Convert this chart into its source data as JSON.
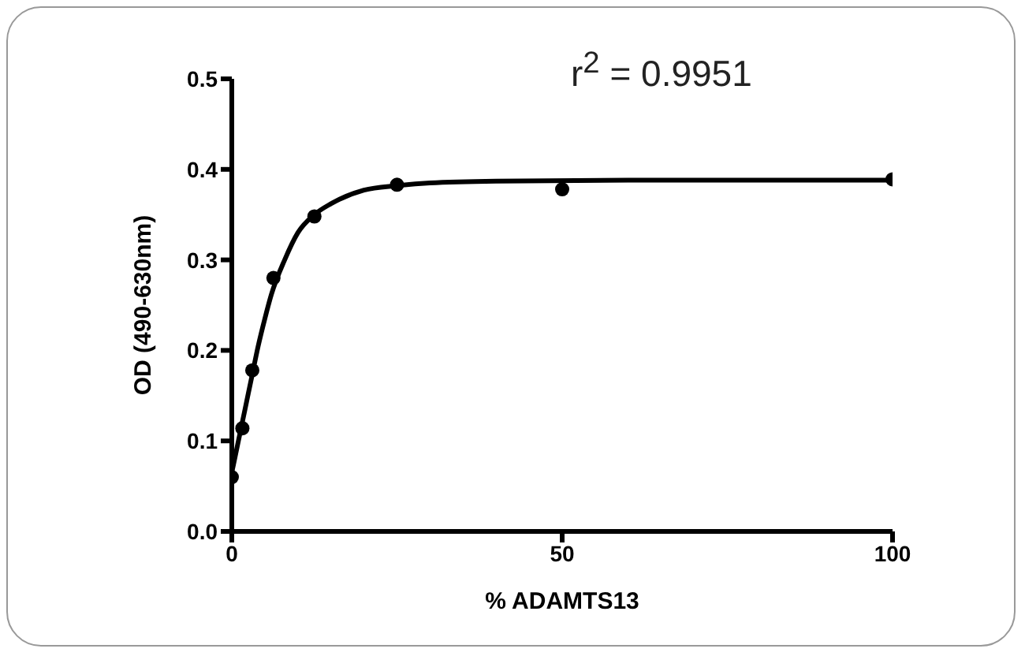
{
  "chart_data": {
    "type": "scatter",
    "xlabel": "% ADAMTS13",
    "ylabel": "OD  (490-630nm)",
    "annotations": [
      "r$^{2}$ = 0.9951"
    ],
    "series": [
      {
        "type": "scatter",
        "color": "#000000",
        "marker": "circle",
        "x": [
          0,
          1.6,
          3.1,
          6.3,
          12.5,
          25,
          50,
          100
        ],
        "values": [
          0.06,
          0.114,
          0.178,
          0.28,
          0.348,
          0.383,
          0.378,
          0.389
        ]
      },
      {
        "type": "line",
        "color": "#000000",
        "marker": "none",
        "line_style": "solid",
        "x": [
          0,
          1,
          2,
          3,
          4,
          5,
          6,
          8,
          10,
          12.5,
          15,
          20,
          25,
          30,
          40,
          60,
          100
        ],
        "values": [
          0.065,
          0.1,
          0.135,
          0.17,
          0.205,
          0.235,
          0.262,
          0.3,
          0.33,
          0.35,
          0.362,
          0.377,
          0.382,
          0.385,
          0.387,
          0.388,
          0.388
        ]
      }
    ],
    "xlim": [
      0,
      100
    ],
    "xticks": [
      0,
      50,
      100
    ],
    "ylim": [
      0,
      0.5
    ],
    "yticks": [
      {
        "value": 0,
        "label": "0.0"
      },
      {
        "value": 0.1,
        "label": "0.1"
      },
      {
        "value": 0.2,
        "label": "0.2"
      },
      {
        "value": 0.3,
        "label": "0.3"
      },
      {
        "value": 0.4,
        "label": "0.4"
      },
      {
        "value": 0.5,
        "label": "0.5"
      }
    ],
    "grid": false
  }
}
